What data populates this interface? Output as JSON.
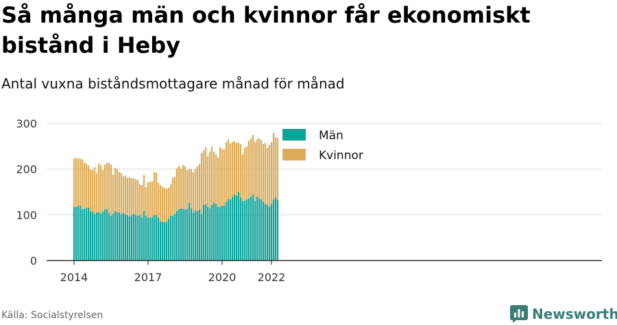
{
  "title": "Så många män och kvinnor får ekonomiskt bistånd i Heby",
  "subtitle": "Antal vuxna biståndsmottagare månad för månad",
  "source": "Källa: Socialstyrelsen",
  "brand": "Newsworthy",
  "colors": {
    "men": "#0ca39a",
    "women": "#dcac5a",
    "grid": "#dddddd",
    "axis": "#333333",
    "brand": "#3a7d77"
  },
  "chart_data": {
    "type": "bar",
    "stacked": true,
    "x_start": "2014-01",
    "x_ticks": [
      "2014",
      "2017",
      "2020",
      "2022"
    ],
    "y_ticks": [
      "0",
      "100",
      "200",
      "300"
    ],
    "ylim": [
      0,
      300
    ],
    "grid": true,
    "legend_position": "top-center",
    "series": [
      {
        "name": "Män",
        "values": [
          117,
          117,
          119,
          120,
          113,
          113,
          115,
          116,
          108,
          107,
          101,
          105,
          106,
          103,
          107,
          112,
          113,
          104,
          98,
          103,
          108,
          106,
          105,
          101,
          104,
          101,
          99,
          97,
          99,
          103,
          100,
          98,
          100,
          94,
          108,
          98,
          94,
          94,
          95,
          99,
          100,
          94,
          85,
          85,
          84,
          85,
          91,
          98,
          97,
          102,
          108,
          112,
          114,
          113,
          112,
          113,
          126,
          114,
          105,
          110,
          108,
          111,
          102,
          122,
          124,
          118,
          115,
          122,
          127,
          123,
          118,
          117,
          120,
          120,
          128,
          135,
          133,
          139,
          144,
          142,
          150,
          138,
          130,
          131,
          134,
          136,
          140,
          145,
          130,
          140,
          136,
          134,
          128,
          124,
          122,
          118,
          124,
          133,
          138,
          133
        ]
      },
      {
        "name": "Kvinnor",
        "values": [
          106,
          108,
          104,
          103,
          108,
          102,
          97,
          92,
          92,
          91,
          103,
          86,
          106,
          106,
          91,
          98,
          101,
          110,
          112,
          85,
          95,
          95,
          89,
          90,
          80,
          85,
          82,
          85,
          81,
          77,
          78,
          78,
          67,
          71,
          79,
          63,
          77,
          79,
          78,
          95,
          92,
          76,
          80,
          76,
          75,
          72,
          68,
          69,
          84,
          81,
          94,
          95,
          88,
          96,
          94,
          85,
          74,
          86,
          88,
          91,
          98,
          100,
          133,
          119,
          124,
          110,
          123,
          127,
          111,
          109,
          107,
          131,
          124,
          123,
          131,
          130,
          123,
          120,
          117,
          115,
          108,
          117,
          102,
          116,
          116,
          126,
          127,
          130,
          129,
          125,
          132,
          130,
          127,
          133,
          125,
          135,
          135,
          146,
          132,
          135
        ]
      }
    ]
  }
}
